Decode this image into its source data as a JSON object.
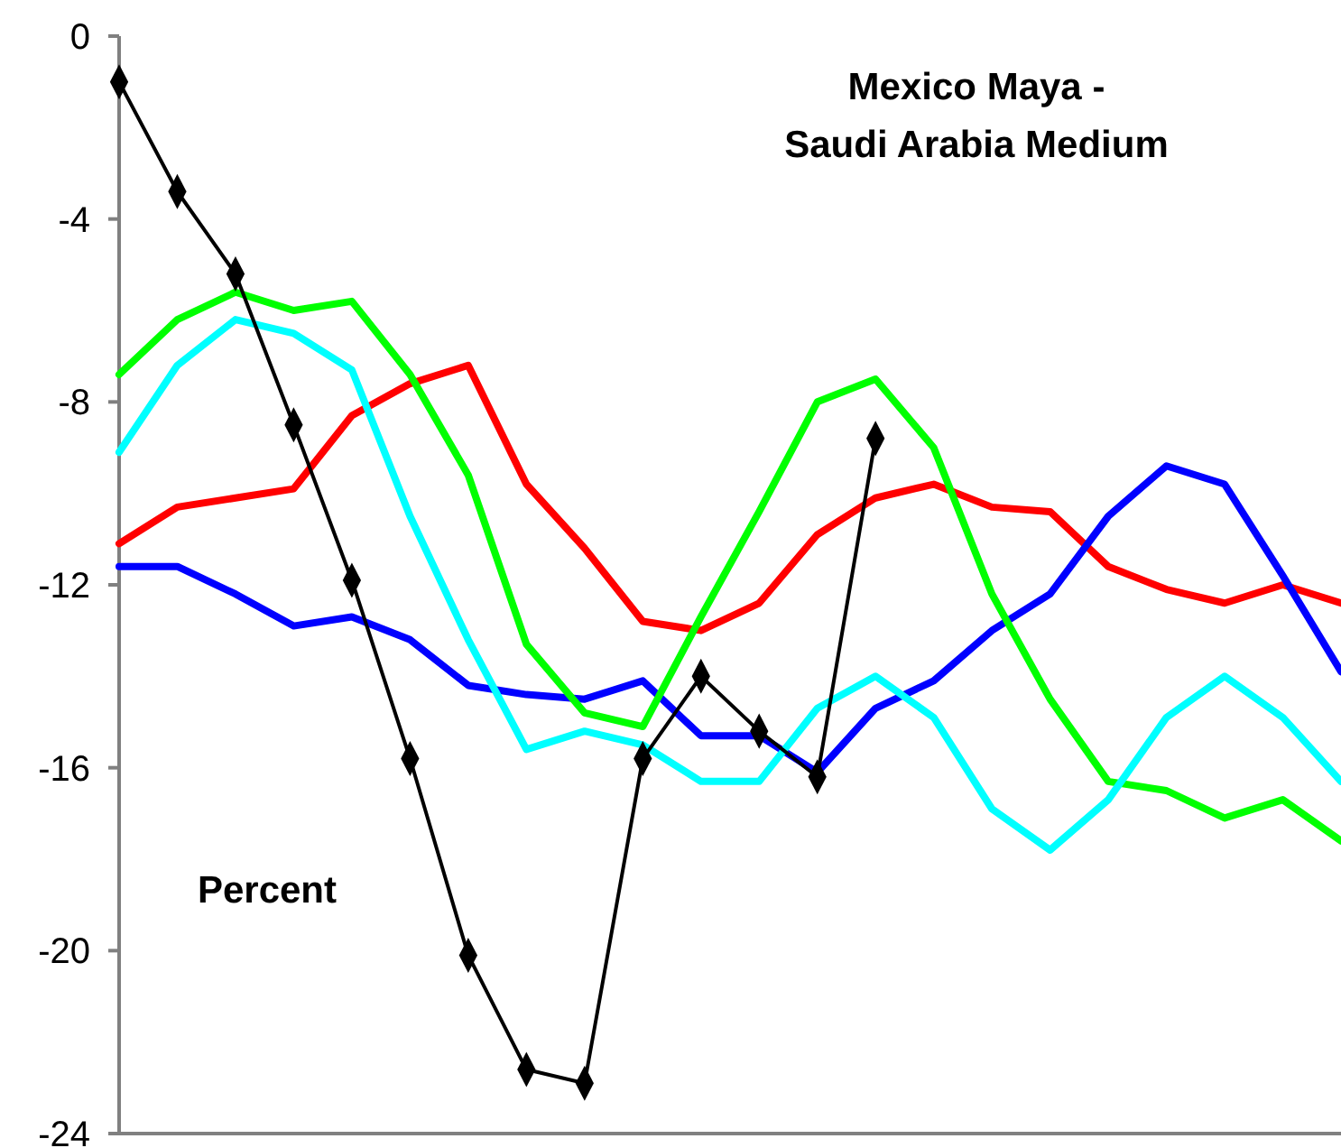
{
  "chart_data": {
    "type": "line",
    "title": "Mexico Maya -\nSaudi Arabia Medium",
    "ylabel": "Percent",
    "categories": [
      null,
      null,
      null,
      null,
      null,
      null,
      null,
      null,
      null,
      null,
      null,
      null,
      null,
      null,
      null,
      null,
      null,
      null,
      null,
      null,
      null,
      null
    ],
    "ylim": [
      -24,
      0
    ],
    "yticks": [
      -24,
      -20,
      -16,
      -12,
      -8,
      -4,
      0
    ],
    "series": [
      {
        "color": "#ff0000",
        "marker": "none",
        "values": [
          -11.1,
          -10.3,
          -10.1,
          -9.9,
          -8.3,
          -7.6,
          -7.2,
          -9.8,
          -11.2,
          -12.8,
          -13.0,
          -12.4,
          -10.9,
          -10.1,
          -9.8,
          -10.3,
          -10.4,
          -11.6,
          -12.1,
          -12.4,
          -12.0,
          -12.4
        ]
      },
      {
        "color": "#0000ff",
        "marker": "none",
        "values": [
          -11.6,
          -11.6,
          -12.2,
          -12.9,
          -12.7,
          -13.2,
          -14.2,
          -14.4,
          -14.5,
          -14.1,
          -15.3,
          -15.3,
          -16.1,
          -14.7,
          -14.1,
          -13.0,
          -12.2,
          -10.5,
          -9.4,
          -9.8,
          -11.8,
          -13.9
        ]
      },
      {
        "color": "#00ff00",
        "marker": "none",
        "values": [
          -7.4,
          -6.2,
          -5.6,
          -6.0,
          -5.8,
          -7.4,
          -9.6,
          -13.3,
          -14.8,
          -15.1,
          -12.7,
          -10.4,
          -8.0,
          -7.5,
          -9.0,
          -12.2,
          -14.5,
          -16.3,
          -16.5,
          -17.1,
          -16.7,
          -17.6
        ]
      },
      {
        "color": "#00ffff",
        "marker": "none",
        "values": [
          -9.1,
          -7.2,
          -6.2,
          -6.5,
          -7.3,
          -10.5,
          -13.2,
          -15.6,
          -15.2,
          -15.5,
          -16.3,
          -16.3,
          -14.7,
          -14.0,
          -14.9,
          -16.9,
          -17.8,
          -16.7,
          -14.9,
          -14.0,
          -14.9,
          -16.3
        ]
      },
      {
        "color": "#000000",
        "marker": "diamond",
        "values": [
          -1.0,
          -3.4,
          -5.2,
          -8.5,
          -11.9,
          -15.8,
          -20.1,
          -22.6,
          -22.9,
          -15.8,
          -14.0,
          -15.2,
          -16.2,
          -8.8,
          null,
          null,
          null,
          null,
          null,
          null,
          null,
          null
        ]
      }
    ]
  }
}
